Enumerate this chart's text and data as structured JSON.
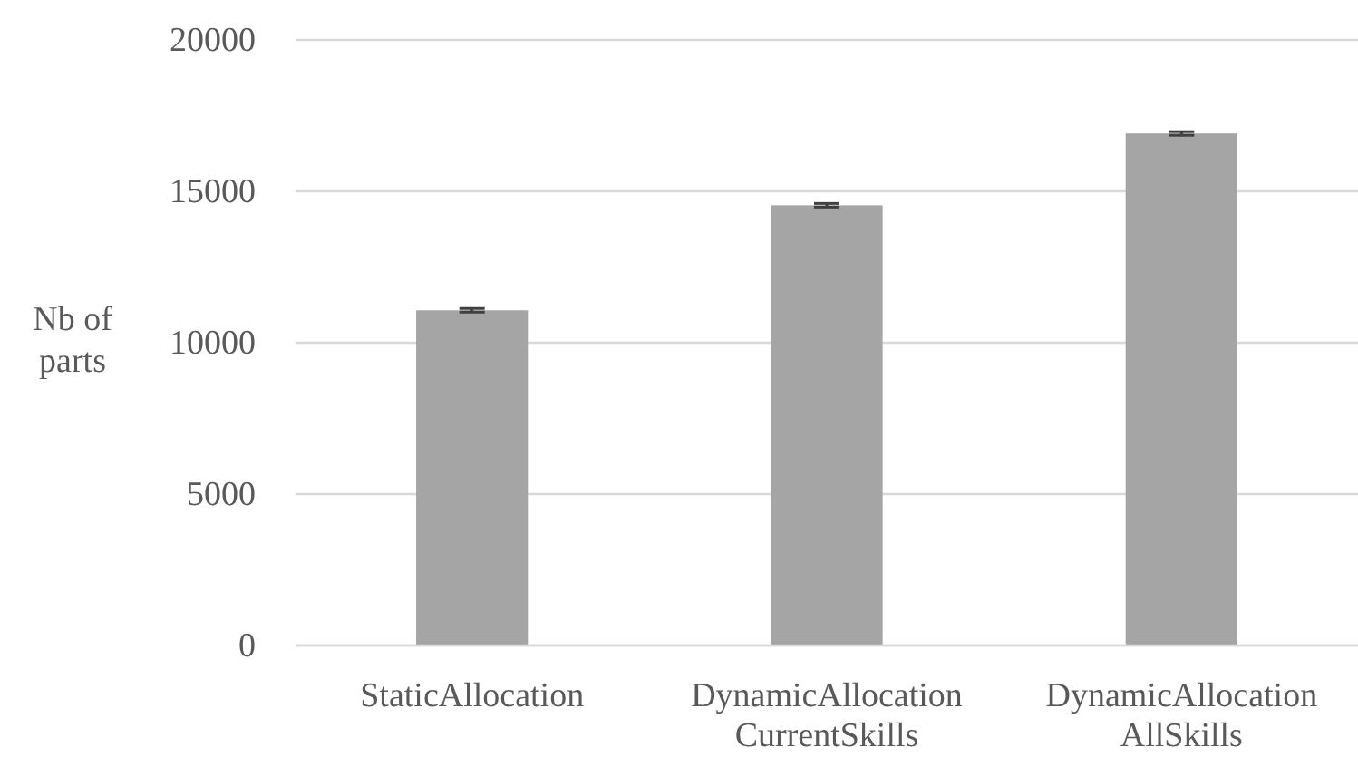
{
  "chart_data": {
    "type": "bar",
    "ylabel": "Nb of parts",
    "categories": [
      "StaticAllocation",
      "DynamicAllocation CurrentSkills",
      "DynamicAllocation AllSkills"
    ],
    "values": [
      11070,
      14540,
      16910
    ],
    "errors": [
      60,
      60,
      60
    ],
    "color": "#a5a5a5",
    "ylim": [
      0,
      20000
    ],
    "yticks": [
      0,
      5000,
      10000,
      15000,
      20000
    ],
    "grid": "y"
  }
}
